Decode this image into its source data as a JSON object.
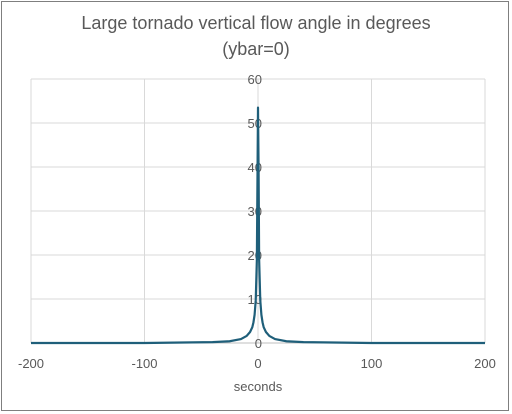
{
  "chart_data": {
    "type": "line",
    "title_lines": [
      "Large tornado vertical flow angle in degrees",
      "(ybar=0)"
    ],
    "xlabel": "seconds",
    "ylabel": "",
    "xlim": [
      -200,
      200
    ],
    "ylim": [
      0,
      60
    ],
    "xticks": [
      -200,
      -100,
      0,
      100,
      200
    ],
    "yticks": [
      0,
      10,
      20,
      30,
      40,
      50,
      60
    ],
    "grid": true,
    "legend": "none",
    "series": [
      {
        "color": "#1f5f7a",
        "x": [
          -200,
          -100,
          -40,
          -25,
          -15,
          -10,
          -7,
          -5,
          -4,
          -3,
          -2,
          -1,
          0,
          0.5,
          1,
          2,
          3,
          4,
          5,
          7,
          10,
          15,
          25,
          40,
          100,
          200
        ],
        "y": [
          0,
          0,
          0.2,
          0.4,
          0.9,
          1.6,
          2.5,
          3.6,
          4.7,
          6.4,
          9.7,
          19,
          53.5,
          40,
          19,
          9.7,
          6.4,
          4.7,
          3.6,
          2.5,
          1.6,
          0.9,
          0.4,
          0.2,
          0,
          0
        ]
      }
    ]
  }
}
